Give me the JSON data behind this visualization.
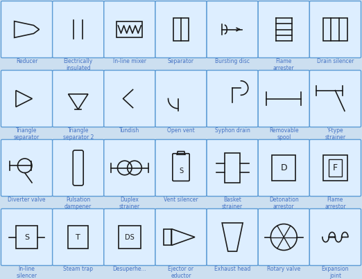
{
  "bg_color": "#ccdff0",
  "card_color": "#ddeeff",
  "card_border_color": "#5b9bd5",
  "text_color": "#4472c4",
  "symbol_color": "#1a1a1a",
  "grid_cols": 7,
  "grid_rows": 4,
  "labels": [
    [
      "Reducer",
      "Electrically\ninsulated",
      "In-line mixer",
      "Separator",
      "Bursting disc",
      "Flame\narrester",
      "Drain silencer"
    ],
    [
      "Triangle\nseparator",
      "Triangle\nseparator 2",
      "Tundish",
      "Open vent",
      "Syphon drain",
      "Removable\nspool",
      "Y-type\nstrainer"
    ],
    [
      "Diverter valve",
      "Pulsation\ndampener",
      "Duplex\nstrainer",
      "Vent silencer",
      "Basket\nstrainer",
      "Detonation\narrestor",
      "Flame\narrestor"
    ],
    [
      "In-line\nsilencer",
      "Steam trap",
      "Desuperhe...",
      "Ejector or\neductor",
      "Exhaust head",
      "Rotary valve",
      "Expansion\njoint"
    ]
  ]
}
